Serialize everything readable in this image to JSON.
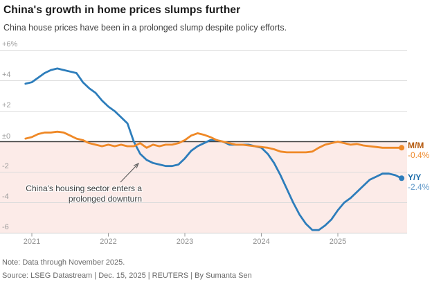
{
  "header": {
    "title": "China's growth in home prices slumps further",
    "subtitle": "China house prices have been in a prolonged slump despite policy efforts."
  },
  "chart_data": {
    "type": "line",
    "x_start": "2020-12",
    "x_end": "2025-11",
    "interval": "monthly",
    "x_tick_labels": [
      "2021",
      "2022",
      "2023",
      "2024",
      "2025"
    ],
    "y_tick_labels": [
      "+6%",
      "+4",
      "+2",
      "±0",
      "-2",
      "-4",
      "-6"
    ],
    "y_tick_values": [
      6,
      4,
      2,
      0,
      -2,
      -4,
      -6
    ],
    "ylim": [
      -6.3,
      6.8
    ],
    "grid": "horizontal",
    "series": [
      {
        "name": "Y/Y",
        "color": "#2d7dbb",
        "end_label": "Y/Y",
        "end_value_label": "-2.4%",
        "values": [
          3.8,
          3.9,
          4.2,
          4.5,
          4.7,
          4.8,
          4.7,
          4.6,
          4.5,
          3.9,
          3.5,
          3.2,
          2.7,
          2.3,
          2.0,
          1.6,
          1.2,
          0.0,
          -0.8,
          -1.2,
          -1.4,
          -1.5,
          -1.6,
          -1.6,
          -1.5,
          -1.1,
          -0.6,
          -0.3,
          -0.1,
          0.1,
          0.1,
          0.0,
          -0.2,
          -0.2,
          -0.2,
          -0.2,
          -0.3,
          -0.4,
          -0.8,
          -1.4,
          -2.2,
          -3.1,
          -4.0,
          -4.8,
          -5.4,
          -5.8,
          -5.8,
          -5.5,
          -5.1,
          -4.5,
          -4.0,
          -3.7,
          -3.3,
          -2.9,
          -2.5,
          -2.3,
          -2.1,
          -2.1,
          -2.2,
          -2.4
        ]
      },
      {
        "name": "M/M",
        "color": "#ef8927",
        "end_label": "M/M",
        "end_value_label": "-0.4%",
        "values": [
          0.2,
          0.3,
          0.5,
          0.6,
          0.6,
          0.65,
          0.6,
          0.4,
          0.2,
          0.1,
          -0.1,
          -0.2,
          -0.3,
          -0.2,
          -0.3,
          -0.2,
          -0.3,
          -0.3,
          -0.1,
          -0.4,
          -0.2,
          -0.3,
          -0.2,
          -0.2,
          -0.1,
          0.1,
          0.4,
          0.55,
          0.45,
          0.3,
          0.1,
          0.0,
          -0.1,
          -0.2,
          -0.2,
          -0.25,
          -0.3,
          -0.35,
          -0.4,
          -0.5,
          -0.65,
          -0.7,
          -0.7,
          -0.7,
          -0.7,
          -0.65,
          -0.4,
          -0.2,
          -0.1,
          0.0,
          -0.1,
          -0.2,
          -0.15,
          -0.25,
          -0.3,
          -0.35,
          -0.4,
          -0.4,
          -0.4,
          -0.4
        ]
      }
    ],
    "shaded_region": {
      "description": "area below zero",
      "fill": "#fcebe8"
    },
    "annotation": {
      "text": "China's housing sector enters a\nprolonged downturn"
    },
    "colors": {
      "gridline": "#dcdcdc",
      "zero_line": "#404040",
      "axis_line": "#cfcfcf",
      "tick": "#9a9a9a",
      "yy_label": "#1a6aa8",
      "yy_value": "#5e97c8",
      "mm_label": "#b45a0f",
      "mm_value": "#ee8a2d"
    }
  },
  "footer": {
    "note": "Note: Data through November 2025.",
    "source": "Source: LSEG Datastream | Dec. 15, 2025 | REUTERS | By Sumanta Sen"
  }
}
